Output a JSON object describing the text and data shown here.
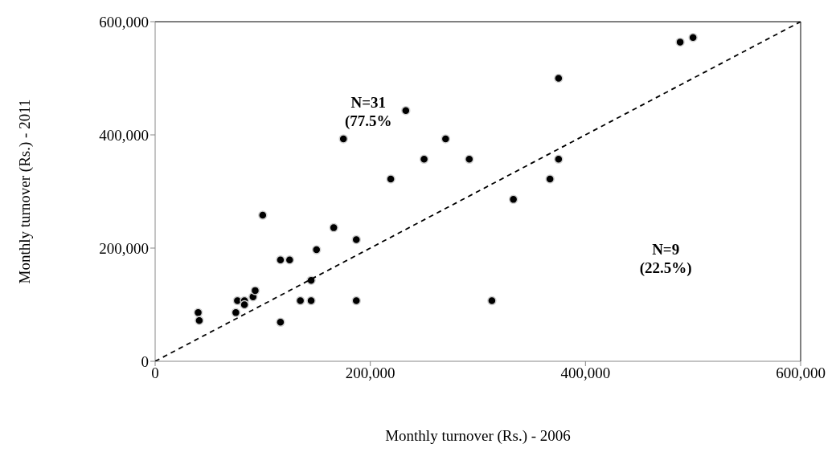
{
  "chart_data": {
    "type": "scatter",
    "xlabel": "Monthly turnover (Rs.) - 2006",
    "ylabel": "Monthly turnover (Rs.) - 2011",
    "annotations": [
      "N=31\n(77.5%",
      "N=9\n(22.5%)"
    ],
    "xlim": [
      0,
      600000
    ],
    "xticks": [
      0,
      {
        "value": 200000,
        "label": "200,000"
      },
      {
        "value": 400000,
        "label": "400,000"
      },
      {
        "value": 600000,
        "label": "600,000"
      }
    ],
    "ylim": [
      0,
      600000
    ],
    "yticks": [
      0,
      {
        "value": 200000,
        "label": "200,000"
      },
      {
        "value": 400000,
        "label": "400,000"
      },
      {
        "value": 600000,
        "label": "600,000"
      }
    ],
    "marker": "circle",
    "series": [
      {
        "type": "scatter",
        "color": "#000000",
        "x": [
          40000,
          41000,
          75000,
          76500,
          83000,
          83000,
          91000,
          93000,
          100000,
          116500,
          125000,
          116500,
          135000,
          145000,
          145000,
          150000,
          166000,
          175000,
          187000,
          187000,
          219000,
          233000,
          250000,
          270000,
          292000,
          313000,
          333000,
          367000,
          375000,
          375000,
          488000,
          500000
        ],
        "values": [
          86000,
          72000,
          86000,
          107000,
          107000,
          100000,
          114000,
          125000,
          258000,
          179000,
          179000,
          69000,
          107000,
          107000,
          143000,
          197000,
          236000,
          393000,
          215000,
          107000,
          322000,
          443000,
          357000,
          393000,
          357000,
          107000,
          286000,
          322000,
          357000,
          500000,
          564000,
          572000
        ]
      },
      {
        "type": "line",
        "color": "#000000",
        "x": [
          0,
          600000
        ],
        "values": [
          0,
          600000
        ],
        "line_style": "dashed",
        "marker": "none"
      }
    ]
  }
}
